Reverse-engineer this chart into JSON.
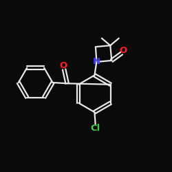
{
  "background": "#0a0a0a",
  "bond_color": "#e8e8e8",
  "atom_colors": {
    "O": "#ff2020",
    "N": "#4040ff",
    "Cl": "#40cc40",
    "C": "#e8e8e8"
  },
  "figsize": [
    2.5,
    2.5
  ],
  "dpi": 100,
  "xlim": [
    0,
    10
  ],
  "ylim": [
    0,
    10
  ]
}
